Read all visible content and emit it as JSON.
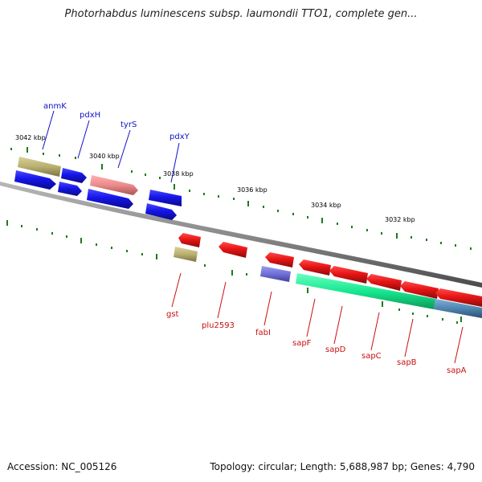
{
  "header": {
    "title": "Photorhabdus luminescens subsp. laumondii TTO1, complete gen..."
  },
  "footer": {
    "accession": "Accession: NC_005126",
    "summary": "Topology: circular; Length: 5,688,987 bp; Genes: 4,790"
  },
  "scale_labels": [
    "3042 kbp",
    "3040 kbp",
    "3038 kbp",
    "3036 kbp",
    "3034 kbp",
    "3032 kbp"
  ],
  "genes_top": [
    "anmK",
    "pdxH",
    "tyrS",
    "pdxY"
  ],
  "genes_bottom": [
    "gst",
    "plu2593",
    "fabI",
    "sapF",
    "sapD",
    "sapC",
    "sapB",
    "sapA"
  ],
  "colors": {
    "forward_gene": "#1515e8",
    "reverse_gene": "#e81515",
    "olive_gene": "#b8b070",
    "pink_gene": "#ec8a8a",
    "purple_gene": "#7070d8",
    "green_gene": "#18e890",
    "steel_gene": "#4e86b0",
    "backbone": "#8a8a8a",
    "tick": "#1f7a1f"
  }
}
